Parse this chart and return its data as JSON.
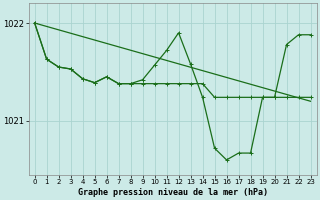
{
  "bg_color": "#cceae7",
  "grid_color": "#aad4d0",
  "line_color": "#1a6e1a",
  "title": "Graphe pression niveau de la mer (hPa)",
  "xlim": [
    -0.5,
    23.5
  ],
  "ylim": [
    1020.45,
    1022.2
  ],
  "yticks": [
    1021,
    1022
  ],
  "xticks": [
    0,
    1,
    2,
    3,
    4,
    5,
    6,
    7,
    8,
    9,
    10,
    11,
    12,
    13,
    14,
    15,
    16,
    17,
    18,
    19,
    20,
    21,
    22,
    23
  ],
  "line1_x": [
    0,
    1,
    2,
    3,
    4,
    5,
    6,
    7,
    8,
    9,
    10,
    11,
    12,
    13,
    14,
    15,
    16,
    17,
    18,
    19,
    20,
    21,
    22,
    23
  ],
  "line1_y": [
    1022.0,
    1021.63,
    1021.55,
    1021.53,
    1021.43,
    1021.39,
    1021.45,
    1021.38,
    1021.38,
    1021.38,
    1021.38,
    1021.38,
    1021.38,
    1021.38,
    1021.38,
    1021.24,
    1021.24,
    1021.24,
    1021.24,
    1021.24,
    1021.24,
    1021.24,
    1021.24,
    1021.24
  ],
  "line2_x": [
    0,
    1,
    2,
    3,
    4,
    5,
    6,
    7,
    8,
    9,
    10,
    11,
    12,
    13,
    14,
    15,
    16,
    17,
    18,
    19,
    20,
    21,
    22,
    23
  ],
  "line2_y": [
    1022.0,
    1021.63,
    1021.55,
    1021.53,
    1021.43,
    1021.39,
    1021.45,
    1021.38,
    1021.38,
    1021.42,
    1021.57,
    1021.72,
    1021.9,
    1021.58,
    1021.24,
    1020.72,
    1020.6,
    1020.67,
    1020.67,
    1021.24,
    1021.24,
    1021.78,
    1021.88,
    1021.88
  ],
  "line3_x": [
    0,
    23
  ],
  "line3_y": [
    1022.0,
    1021.2
  ]
}
